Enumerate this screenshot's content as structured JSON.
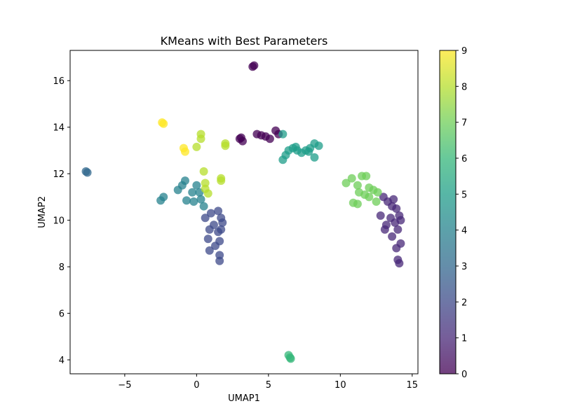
{
  "chart_data": {
    "type": "scatter",
    "title": "KMeans with Best Parameters",
    "xlabel": "UMAP1",
    "ylabel": "UMAP2",
    "xlim": [
      -8.8,
      15.4
    ],
    "ylim": [
      3.4,
      17.3
    ],
    "x_ticks": [
      -5,
      0,
      5,
      10,
      15
    ],
    "x_tick_labels": [
      "−5",
      "0",
      "5",
      "10",
      "15"
    ],
    "y_ticks": [
      4,
      6,
      8,
      10,
      12,
      14,
      16
    ],
    "y_tick_labels": [
      "4",
      "6",
      "8",
      "10",
      "12",
      "14",
      "16"
    ],
    "grid": false,
    "colorbar": {
      "min": 0,
      "max": 9,
      "ticks": [
        0,
        1,
        2,
        3,
        4,
        5,
        6,
        7,
        8,
        9
      ],
      "tick_labels": [
        "0",
        "1",
        "2",
        "3",
        "4",
        "5",
        "6",
        "7",
        "8",
        "9"
      ],
      "colormap": "viridis",
      "stops": [
        "#440154",
        "#482878",
        "#3e4989",
        "#31688e",
        "#26828e",
        "#1f9e89",
        "#35b779",
        "#6ece58",
        "#b5de2b",
        "#fde725"
      ]
    },
    "cluster_colors": {
      "0": "#440154",
      "1": "#482878",
      "2": "#3e4989",
      "3": "#31688e",
      "4": "#26828e",
      "5": "#1f9e89",
      "6": "#35b779",
      "7": "#6ece58",
      "8": "#b5de2b",
      "9": "#fde725"
    },
    "points": [
      {
        "x": 3.9,
        "y": 16.6,
        "c": 0
      },
      {
        "x": 4.0,
        "y": 16.65,
        "c": 0
      },
      {
        "x": 3.0,
        "y": 13.5,
        "c": 0
      },
      {
        "x": 3.2,
        "y": 13.4,
        "c": 0
      },
      {
        "x": 3.1,
        "y": 13.55,
        "c": 0
      },
      {
        "x": 4.2,
        "y": 13.7,
        "c": 0
      },
      {
        "x": 4.5,
        "y": 13.65,
        "c": 0
      },
      {
        "x": 4.8,
        "y": 13.6,
        "c": 0
      },
      {
        "x": 5.1,
        "y": 13.5,
        "c": 0
      },
      {
        "x": 5.5,
        "y": 13.85,
        "c": 0
      },
      {
        "x": 5.7,
        "y": 13.7,
        "c": 0
      },
      {
        "x": 13.0,
        "y": 11.0,
        "c": 1
      },
      {
        "x": 13.3,
        "y": 10.8,
        "c": 1
      },
      {
        "x": 13.6,
        "y": 10.6,
        "c": 1
      },
      {
        "x": 13.9,
        "y": 10.5,
        "c": 1
      },
      {
        "x": 14.1,
        "y": 10.2,
        "c": 1
      },
      {
        "x": 13.5,
        "y": 10.1,
        "c": 1
      },
      {
        "x": 13.8,
        "y": 9.9,
        "c": 1
      },
      {
        "x": 13.2,
        "y": 9.8,
        "c": 1
      },
      {
        "x": 14.0,
        "y": 9.6,
        "c": 1
      },
      {
        "x": 13.6,
        "y": 9.3,
        "c": 1
      },
      {
        "x": 14.2,
        "y": 9.0,
        "c": 1
      },
      {
        "x": 13.9,
        "y": 8.8,
        "c": 1
      },
      {
        "x": 14.0,
        "y": 8.3,
        "c": 1
      },
      {
        "x": 14.1,
        "y": 8.15,
        "c": 1
      },
      {
        "x": 12.8,
        "y": 10.2,
        "c": 1
      },
      {
        "x": 13.1,
        "y": 9.6,
        "c": 1
      },
      {
        "x": 13.7,
        "y": 10.9,
        "c": 1
      },
      {
        "x": 14.2,
        "y": 10.0,
        "c": 1
      },
      {
        "x": 1.0,
        "y": 10.3,
        "c": 2
      },
      {
        "x": 1.5,
        "y": 10.4,
        "c": 2
      },
      {
        "x": 1.7,
        "y": 10.1,
        "c": 2
      },
      {
        "x": 1.8,
        "y": 9.9,
        "c": 2
      },
      {
        "x": 1.2,
        "y": 9.8,
        "c": 2
      },
      {
        "x": 0.9,
        "y": 9.6,
        "c": 2
      },
      {
        "x": 1.5,
        "y": 9.5,
        "c": 2
      },
      {
        "x": 0.8,
        "y": 9.2,
        "c": 2
      },
      {
        "x": 1.6,
        "y": 9.1,
        "c": 2
      },
      {
        "x": 1.3,
        "y": 8.9,
        "c": 2
      },
      {
        "x": 0.9,
        "y": 8.7,
        "c": 2
      },
      {
        "x": 1.6,
        "y": 8.5,
        "c": 2
      },
      {
        "x": 1.6,
        "y": 8.25,
        "c": 2
      },
      {
        "x": 0.6,
        "y": 10.1,
        "c": 2
      },
      {
        "x": 1.7,
        "y": 9.6,
        "c": 2
      },
      {
        "x": -7.7,
        "y": 12.1,
        "c": 3
      },
      {
        "x": -7.6,
        "y": 12.05,
        "c": 3
      },
      {
        "x": -2.5,
        "y": 10.85,
        "c": 4
      },
      {
        "x": -2.3,
        "y": 11.0,
        "c": 4
      },
      {
        "x": -1.3,
        "y": 11.3,
        "c": 4
      },
      {
        "x": -1.0,
        "y": 11.5,
        "c": 4
      },
      {
        "x": -0.8,
        "y": 11.7,
        "c": 4
      },
      {
        "x": -0.7,
        "y": 10.85,
        "c": 4
      },
      {
        "x": -0.3,
        "y": 11.2,
        "c": 4
      },
      {
        "x": 0.0,
        "y": 11.5,
        "c": 4
      },
      {
        "x": 0.2,
        "y": 11.2,
        "c": 4
      },
      {
        "x": 0.3,
        "y": 10.9,
        "c": 4
      },
      {
        "x": 0.5,
        "y": 10.6,
        "c": 4
      },
      {
        "x": -0.2,
        "y": 10.8,
        "c": 4
      },
      {
        "x": 6.0,
        "y": 12.6,
        "c": 5
      },
      {
        "x": 6.2,
        "y": 12.8,
        "c": 5
      },
      {
        "x": 6.4,
        "y": 13.0,
        "c": 5
      },
      {
        "x": 6.7,
        "y": 13.1,
        "c": 5
      },
      {
        "x": 7.0,
        "y": 13.0,
        "c": 5
      },
      {
        "x": 7.3,
        "y": 12.9,
        "c": 5
      },
      {
        "x": 7.6,
        "y": 13.0,
        "c": 5
      },
      {
        "x": 7.9,
        "y": 13.1,
        "c": 5
      },
      {
        "x": 8.2,
        "y": 13.3,
        "c": 5
      },
      {
        "x": 8.5,
        "y": 13.2,
        "c": 5
      },
      {
        "x": 8.2,
        "y": 12.7,
        "c": 5
      },
      {
        "x": 6.0,
        "y": 13.7,
        "c": 5
      },
      {
        "x": 6.9,
        "y": 13.15,
        "c": 5
      },
      {
        "x": 7.8,
        "y": 12.95,
        "c": 5
      },
      {
        "x": 6.4,
        "y": 4.2,
        "c": 6
      },
      {
        "x": 6.5,
        "y": 4.1,
        "c": 6
      },
      {
        "x": 6.55,
        "y": 4.05,
        "c": 6
      },
      {
        "x": 10.4,
        "y": 11.6,
        "c": 7
      },
      {
        "x": 10.8,
        "y": 11.8,
        "c": 7
      },
      {
        "x": 11.2,
        "y": 11.5,
        "c": 7
      },
      {
        "x": 11.5,
        "y": 11.9,
        "c": 7
      },
      {
        "x": 11.8,
        "y": 11.9,
        "c": 7
      },
      {
        "x": 11.3,
        "y": 11.2,
        "c": 7
      },
      {
        "x": 11.7,
        "y": 11.1,
        "c": 7
      },
      {
        "x": 12.0,
        "y": 11.4,
        "c": 7
      },
      {
        "x": 12.3,
        "y": 11.3,
        "c": 7
      },
      {
        "x": 12.6,
        "y": 11.2,
        "c": 7
      },
      {
        "x": 12.5,
        "y": 10.8,
        "c": 7
      },
      {
        "x": 10.9,
        "y": 10.75,
        "c": 7
      },
      {
        "x": 11.2,
        "y": 10.7,
        "c": 7
      },
      {
        "x": 12.0,
        "y": 11.0,
        "c": 7
      },
      {
        "x": 0.3,
        "y": 13.7,
        "c": 8
      },
      {
        "x": 0.3,
        "y": 13.5,
        "c": 8
      },
      {
        "x": 0.0,
        "y": 13.15,
        "c": 8
      },
      {
        "x": 0.5,
        "y": 12.1,
        "c": 8
      },
      {
        "x": 0.6,
        "y": 11.6,
        "c": 8
      },
      {
        "x": 0.6,
        "y": 11.35,
        "c": 8
      },
      {
        "x": 0.8,
        "y": 11.15,
        "c": 8
      },
      {
        "x": 1.7,
        "y": 11.8,
        "c": 8
      },
      {
        "x": 1.7,
        "y": 11.7,
        "c": 8
      },
      {
        "x": 2.0,
        "y": 13.3,
        "c": 8
      },
      {
        "x": 2.0,
        "y": 13.2,
        "c": 8
      },
      {
        "x": -2.4,
        "y": 14.2,
        "c": 9
      },
      {
        "x": -2.3,
        "y": 14.15,
        "c": 9
      },
      {
        "x": -0.9,
        "y": 13.1,
        "c": 9
      },
      {
        "x": -0.8,
        "y": 12.95,
        "c": 9
      }
    ]
  }
}
